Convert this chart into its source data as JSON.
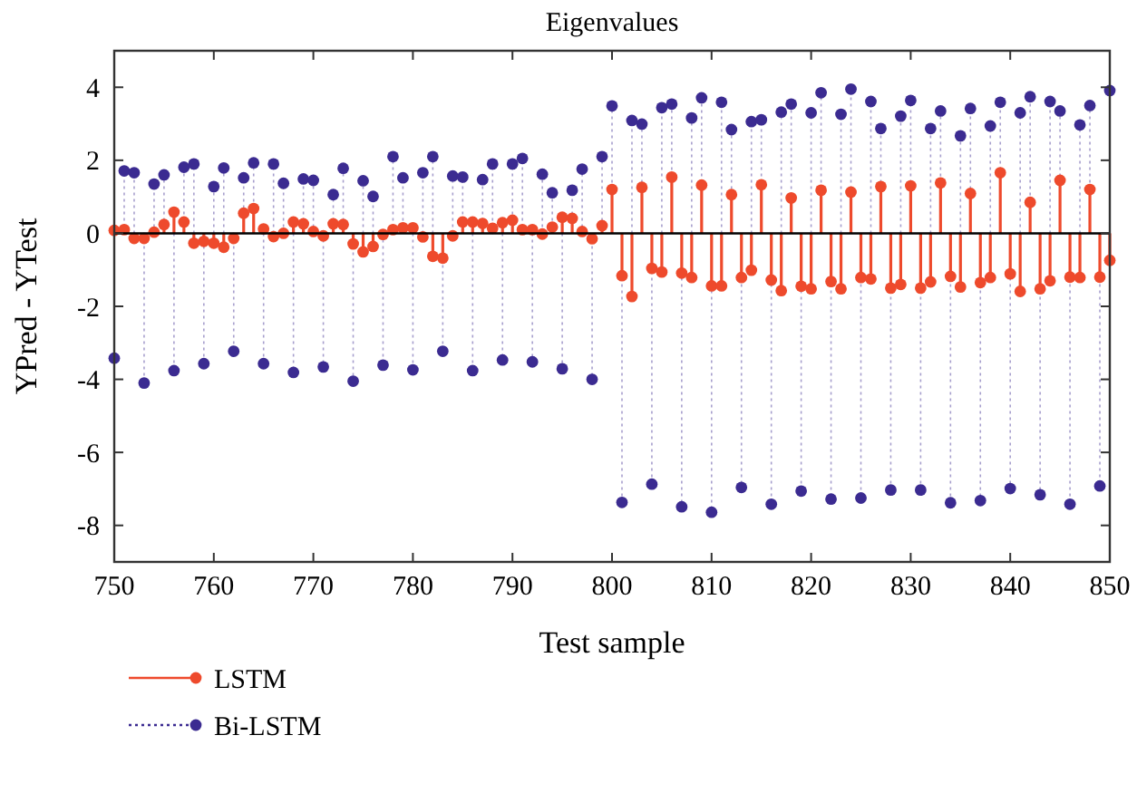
{
  "chart_data": {
    "type": "lollipop",
    "title": "Eigenvalues",
    "xlabel": "Test sample",
    "ylabel": "YPred - YTest",
    "x": [
      750,
      751,
      752,
      753,
      754,
      755,
      756,
      757,
      758,
      759,
      760,
      761,
      762,
      763,
      764,
      765,
      766,
      767,
      768,
      769,
      770,
      771,
      772,
      773,
      774,
      775,
      776,
      777,
      778,
      779,
      780,
      781,
      782,
      783,
      784,
      785,
      786,
      787,
      788,
      789,
      790,
      791,
      792,
      793,
      794,
      795,
      796,
      797,
      798,
      799,
      800,
      801,
      802,
      803,
      804,
      805,
      806,
      807,
      808,
      809,
      810,
      811,
      812,
      813,
      814,
      815,
      816,
      817,
      818,
      819,
      820,
      821,
      822,
      823,
      824,
      825,
      826,
      827,
      828,
      829,
      830,
      831,
      832,
      833,
      834,
      835,
      836,
      837,
      838,
      839,
      840,
      841,
      842,
      843,
      844,
      845,
      846,
      847,
      848,
      849,
      850
    ],
    "xlim": [
      750,
      850
    ],
    "xticks": [
      750,
      760,
      770,
      780,
      790,
      800,
      810,
      820,
      830,
      840,
      850
    ],
    "ylim": [
      -9,
      5
    ],
    "yticks": [
      -8,
      -6,
      -4,
      -2,
      0,
      2,
      4
    ],
    "grid": false,
    "ref_lines": [
      {
        "axis": "y",
        "value": 0,
        "color": "#000000"
      }
    ],
    "legend": "bottom left",
    "marker": "circle",
    "series": [
      {
        "name": "Bi-LSTM",
        "color": "#3b2b91",
        "line_style": "dotted",
        "values": [
          -3.42,
          1.71,
          1.66,
          -4.1,
          1.35,
          1.6,
          -3.76,
          1.81,
          1.9,
          -3.57,
          1.28,
          1.79,
          -3.23,
          1.52,
          1.93,
          -3.57,
          1.9,
          1.37,
          -3.81,
          1.49,
          1.45,
          -3.66,
          1.06,
          1.78,
          -4.05,
          1.44,
          1.01,
          -3.61,
          2.1,
          1.52,
          -3.74,
          1.66,
          2.1,
          -3.23,
          1.57,
          1.54,
          -3.76,
          1.47,
          1.9,
          -3.47,
          1.9,
          2.05,
          -3.52,
          1.62,
          1.11,
          -3.71,
          1.18,
          1.76,
          -4.0,
          2.1,
          3.49,
          -7.37,
          3.09,
          2.99,
          -6.87,
          3.44,
          3.54,
          -7.49,
          3.16,
          3.71,
          -7.64,
          3.59,
          2.84,
          -6.96,
          3.06,
          3.11,
          -7.42,
          3.32,
          3.54,
          -7.06,
          3.3,
          3.85,
          -7.28,
          3.26,
          3.95,
          -7.25,
          3.61,
          2.87,
          -7.03,
          3.21,
          3.64,
          -7.03,
          2.87,
          3.35,
          -7.38,
          2.67,
          3.42,
          -7.32,
          2.94,
          3.59,
          -6.99,
          3.3,
          3.74,
          -7.16,
          3.61,
          3.35,
          -7.42,
          2.97,
          3.5,
          -6.92,
          3.91
        ]
      },
      {
        "name": "LSTM",
        "color": "#ee4a2c",
        "line_style": "solid",
        "values": [
          0.08,
          0.1,
          -0.14,
          -0.14,
          0.03,
          0.24,
          0.58,
          0.31,
          -0.27,
          -0.22,
          -0.27,
          -0.38,
          -0.14,
          0.55,
          0.68,
          0.12,
          -0.09,
          0,
          0.31,
          0.26,
          0.05,
          -0.07,
          0.26,
          0.24,
          -0.29,
          -0.51,
          -0.36,
          -0.03,
          0.1,
          0.15,
          0.15,
          -0.1,
          -0.63,
          -0.68,
          -0.07,
          0.31,
          0.31,
          0.27,
          0.14,
          0.29,
          0.36,
          0.1,
          0.1,
          -0.02,
          0.17,
          0.44,
          0.41,
          0.05,
          -0.15,
          0.21,
          1.2,
          -1.16,
          -1.73,
          1.26,
          -0.96,
          -1.06,
          1.54,
          -1.09,
          -1.21,
          1.32,
          -1.44,
          -1.44,
          1.06,
          -1.21,
          -1.01,
          1.33,
          -1.28,
          -1.57,
          0.97,
          -1.45,
          -1.52,
          1.18,
          -1.32,
          -1.52,
          1.13,
          -1.21,
          -1.25,
          1.28,
          -1.5,
          -1.4,
          1.3,
          -1.5,
          -1.33,
          1.38,
          -1.18,
          -1.47,
          1.09,
          -1.35,
          -1.21,
          1.66,
          -1.11,
          -1.59,
          0.85,
          -1.52,
          -1.3,
          1.45,
          -1.2,
          -1.21,
          1.2,
          -1.2,
          -0.74
        ]
      }
    ]
  }
}
